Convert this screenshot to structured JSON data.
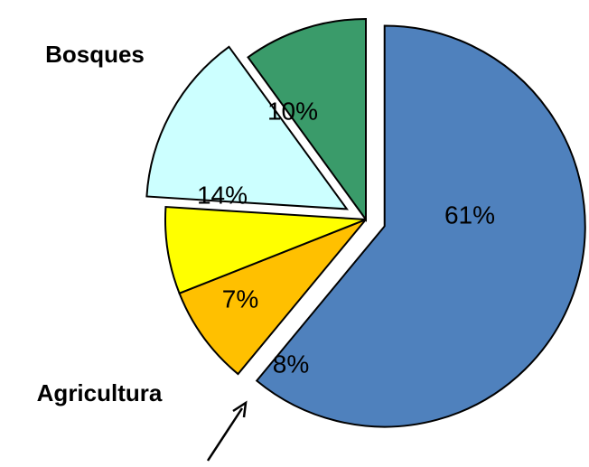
{
  "chart_data": {
    "type": "pie",
    "categories": [
      null,
      "Agricultura",
      null,
      null,
      "Bosques"
    ],
    "values": [
      61,
      8,
      7,
      14,
      10
    ],
    "value_labels": [
      "61%",
      "8%",
      "7%",
      "14%",
      "10%"
    ],
    "colors": [
      "#4f81bd",
      "#ffc000",
      "#ffff00",
      "#ccffff",
      "#3a9b6a"
    ]
  }
}
